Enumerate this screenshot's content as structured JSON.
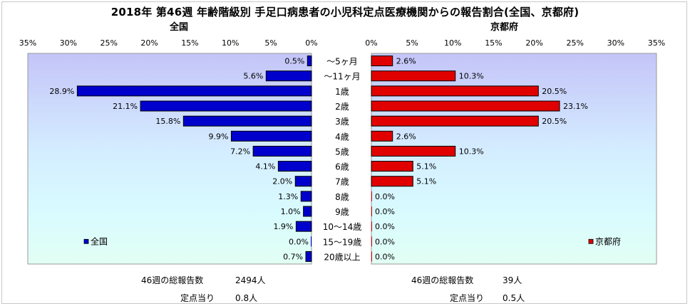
{
  "title": "2018年 第46週 年齢階級別 手足口病患者の小児科定点医療機関からの報告割合(全国、京都府)",
  "panels": {
    "left": {
      "title": "全国",
      "legend": "全国",
      "color": "#0000cc"
    },
    "right": {
      "title": "京都府",
      "legend": "京都府",
      "color": "#e00000"
    }
  },
  "summary": {
    "left": {
      "total_label": "46週の総報告数",
      "total_value": "2494人",
      "per_label": "定点当り",
      "per_value": "0.8人"
    },
    "right": {
      "total_label": "46週の総報告数",
      "total_value": "39人",
      "per_label": "定点当り",
      "per_value": "0.5人"
    }
  },
  "chart_data": [
    {
      "type": "bar",
      "orientation": "horizontal-reversed",
      "title": "全国",
      "categories": [
        "〜5ヶ月",
        "〜11ヶ月",
        "1歳",
        "2歳",
        "3歳",
        "4歳",
        "5歳",
        "6歳",
        "7歳",
        "8歳",
        "9歳",
        "10〜14歳",
        "15〜19歳",
        "20歳以上"
      ],
      "values": [
        0.5,
        5.6,
        28.9,
        21.1,
        15.8,
        9.9,
        7.2,
        4.1,
        2.0,
        1.3,
        1.0,
        1.9,
        0.0,
        0.7
      ],
      "labels": [
        "0.5%",
        "5.6%",
        "28.9%",
        "21.1%",
        "15.8%",
        "9.9%",
        "7.2%",
        "4.1%",
        "2.0%",
        "1.3%",
        "1.0%",
        "1.9%",
        "0.0%",
        "0.7%"
      ],
      "xlim": [
        0,
        35
      ],
      "ticks": [
        "0%",
        "5%",
        "10%",
        "15%",
        "20%",
        "25%",
        "30%",
        "35%"
      ],
      "legend": "bottom-left"
    },
    {
      "type": "bar",
      "orientation": "horizontal",
      "title": "京都府",
      "categories": [
        "〜5ヶ月",
        "〜11ヶ月",
        "1歳",
        "2歳",
        "3歳",
        "4歳",
        "5歳",
        "6歳",
        "7歳",
        "8歳",
        "9歳",
        "10〜14歳",
        "15〜19歳",
        "20歳以上"
      ],
      "values": [
        2.6,
        10.3,
        20.5,
        23.1,
        20.5,
        2.6,
        10.3,
        5.1,
        5.1,
        0.0,
        0.0,
        0.0,
        0.0,
        0.0
      ],
      "labels": [
        "2.6%",
        "10.3%",
        "20.5%",
        "23.1%",
        "20.5%",
        "2.6%",
        "10.3%",
        "5.1%",
        "5.1%",
        "0.0%",
        "0.0%",
        "0.0%",
        "0.0%",
        "0.0%"
      ],
      "xlim": [
        0,
        35
      ],
      "ticks": [
        "0%",
        "5%",
        "10%",
        "15%",
        "20%",
        "25%",
        "30%",
        "35%"
      ],
      "legend": "bottom-right"
    }
  ]
}
